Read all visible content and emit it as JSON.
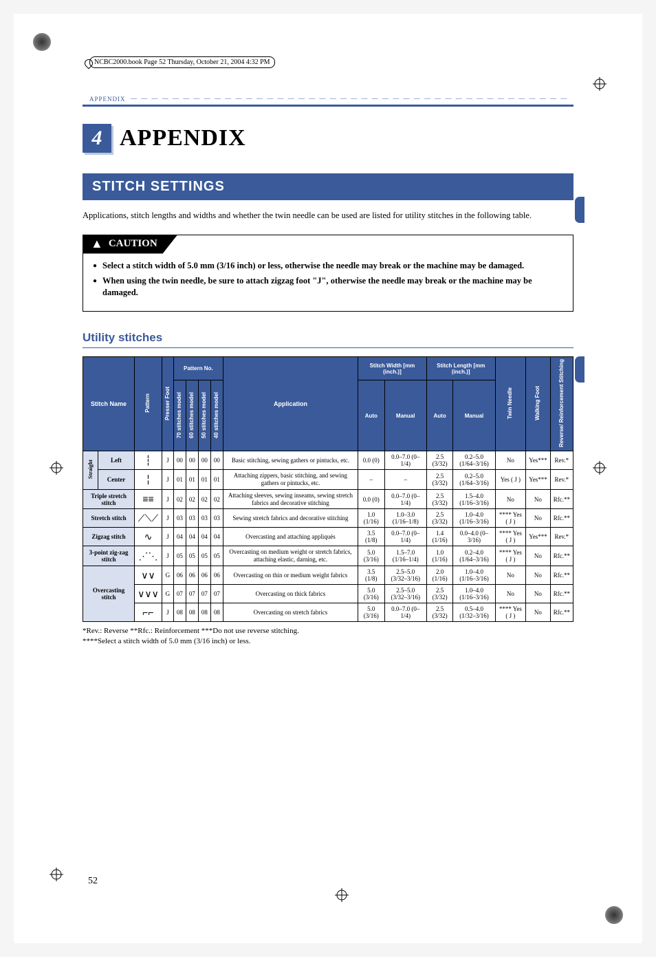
{
  "book_info": "NCBC2000.book  Page 52  Thursday, October 21, 2004  4:32 PM",
  "header_label": "APPENDIX",
  "chapter_num": "4",
  "chapter_title": "APPENDIX",
  "section_title": "STITCH SETTINGS",
  "intro": "Applications, stitch lengths and widths and whether the twin needle can be used are listed for utility stitches in the following table.",
  "caution_label": "CAUTION",
  "caution_items": [
    "Select a stitch width of 5.0 mm (3/16 inch) or less, otherwise the needle may break or the machine may be damaged.",
    "When using the twin needle, be sure to attach zigzag foot \"J\", otherwise the needle may break or the machine may be damaged."
  ],
  "subsection": "Utility stitches",
  "colors": {
    "brand": "#3a5a9a",
    "row_tint": "#d8e0ef"
  },
  "table": {
    "headers": {
      "stitch_name": "Stitch Name",
      "pattern": "Pattern",
      "presser_foot": "Presser Foot",
      "pattern_no": "Pattern No.",
      "m70": "70 stitches model",
      "m60": "60 stitches model",
      "m50": "50 stitches model",
      "m40": "40 stitches model",
      "application": "Application",
      "width": "Stitch Width [mm (inch.)]",
      "length": "Stitch Length [mm (inch.)]",
      "auto": "Auto",
      "manual": "Manual",
      "twin": "Twin Needle",
      "walking": "Walking Foot",
      "reinforce": "Reverse/ Reinforcement Stitching"
    },
    "rows": [
      {
        "group": "Straight",
        "sub": "Left",
        "pattern": "┆",
        "foot": "J",
        "p70": "00",
        "p60": "00",
        "p50": "00",
        "p40": "00",
        "app": "Basic stitching, sewing gathers or pintucks, etc.",
        "wa": "0.0 (0)",
        "wm": "0.0–7.0 (0–1/4)",
        "la": "2.5 (3/32)",
        "lm": "0.2–5.0 (1/64–3/16)",
        "twin": "No",
        "walk": "Yes***",
        "rr": "Rev.*"
      },
      {
        "group": "Straight",
        "sub": "Center",
        "pattern": "╎",
        "foot": "J",
        "p70": "01",
        "p60": "01",
        "p50": "01",
        "p40": "01",
        "app": "Attaching zippers, basic stitching, and sewing gathers or pintucks, etc.",
        "wa": "–",
        "wm": "–",
        "la": "2.5 (3/32)",
        "lm": "0.2–5.0 (1/64–3/16)",
        "twin": "Yes ( J )",
        "walk": "Yes***",
        "rr": "Rev.*"
      },
      {
        "group": "Triple stretch stitch",
        "sub": "",
        "pattern": "≡≡",
        "foot": "J",
        "p70": "02",
        "p60": "02",
        "p50": "02",
        "p40": "02",
        "app": "Attaching sleeves, sewing inseams, sewing stretch fabrics and decorative stitching",
        "wa": "0.0 (0)",
        "wm": "0.0–7.0 (0–1/4)",
        "la": "2.5 (3/32)",
        "lm": "1.5–4.0 (1/16–3/16)",
        "twin": "No",
        "walk": "No",
        "rr": "Rfc.**"
      },
      {
        "group": "Stretch stitch",
        "sub": "",
        "pattern": "⟋⟍⟋",
        "foot": "J",
        "p70": "03",
        "p60": "03",
        "p50": "03",
        "p40": "03",
        "app": "Sewing stretch fabrics and decorative stitching",
        "wa": "1.0 (1/16)",
        "wm": "1.0–3.0 (1/16–1/8)",
        "la": "2.5 (3/32)",
        "lm": "1.0–4.0 (1/16–3/16)",
        "twin": "**** Yes ( J )",
        "walk": "No",
        "rr": "Rfc.**"
      },
      {
        "group": "Zigzag stitch",
        "sub": "",
        "pattern": "∿",
        "foot": "J",
        "p70": "04",
        "p60": "04",
        "p50": "04",
        "p40": "04",
        "app": "Overcasting and attaching appliqués",
        "wa": "3.5 (1/8)",
        "wm": "0.0–7.0 (0–1/4)",
        "la": "1.4 (1/16)",
        "lm": "0.0–4.0 (0–3/16)",
        "twin": "**** Yes ( J )",
        "walk": "Yes***",
        "rr": "Rev.*"
      },
      {
        "group": "3-point zig-zag stitch",
        "sub": "",
        "pattern": "⋰⋱",
        "foot": "J",
        "p70": "05",
        "p60": "05",
        "p50": "05",
        "p40": "05",
        "app": "Overcasting on medium weight or stretch fabrics, attaching elastic, darning, etc.",
        "wa": "5.0 (3/16)",
        "wm": "1.5–7.0 (1/16–1/4)",
        "la": "1.0 (1/16)",
        "lm": "0.2–4.0 (1/64–3/16)",
        "twin": "**** Yes ( J )",
        "walk": "No",
        "rr": "Rfc.**"
      },
      {
        "group": "Overcasting stitch",
        "sub": "",
        "pattern": "∨∨",
        "foot": "G",
        "p70": "06",
        "p60": "06",
        "p50": "06",
        "p40": "06",
        "app": "Overcasting on thin or medium weight fabrics",
        "wa": "3.5 (1/8)",
        "wm": "2.5–5.0 (3/32–3/16)",
        "la": "2.0 (1/16)",
        "lm": "1.0–4.0 (1/16–3/16)",
        "twin": "No",
        "walk": "No",
        "rr": "Rfc.**"
      },
      {
        "group": "Overcasting stitch",
        "sub": "",
        "pattern": "∨∨∨",
        "foot": "G",
        "p70": "07",
        "p60": "07",
        "p50": "07",
        "p40": "07",
        "app": "Overcasting on thick fabrics",
        "wa": "5.0 (3/16)",
        "wm": "2.5–5.0 (3/32–3/16)",
        "la": "2.5 (3/32)",
        "lm": "1.0–4.0 (1/16–3/16)",
        "twin": "No",
        "walk": "No",
        "rr": "Rfc.**"
      },
      {
        "group": "Overcasting stitch",
        "sub": "",
        "pattern": "⌐⌐",
        "foot": "J",
        "p70": "08",
        "p60": "08",
        "p50": "08",
        "p40": "08",
        "app": "Overcasting on stretch fabrics",
        "wa": "5.0 (3/16)",
        "wm": "0.0–7.0 (0–1/4)",
        "la": "2.5 (3/32)",
        "lm": "0.5–4.0 (1/32–3/16)",
        "twin": "**** Yes ( J )",
        "walk": "No",
        "rr": "Rfc.**"
      }
    ]
  },
  "footnotes": [
    "*Rev.: Reverse      **Rfc.: Reinforcement      ***Do not use reverse stitching.",
    "****Select a stitch width of 5.0 mm (3/16 inch) or less."
  ],
  "page_number": "52"
}
